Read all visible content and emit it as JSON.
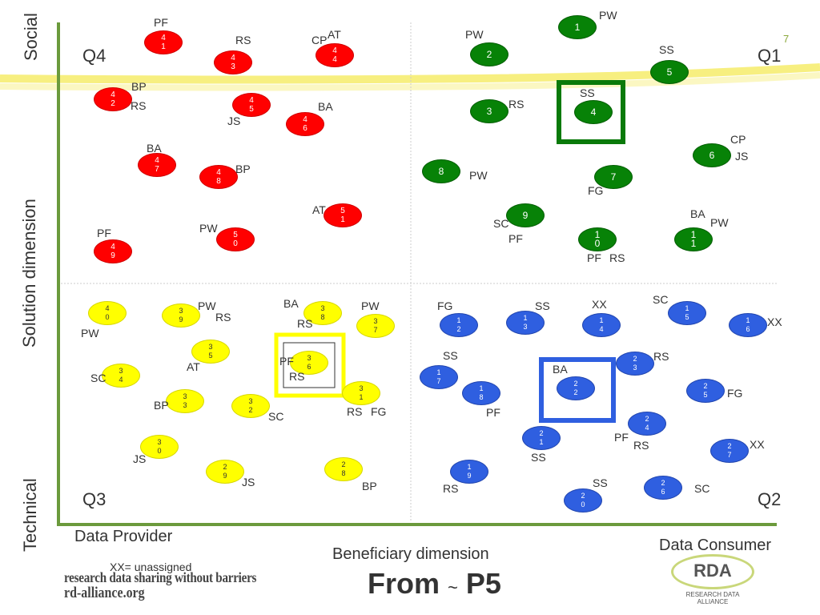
{
  "axes": {
    "social": "Social",
    "solution": "Solution dimension",
    "technical": "Technical",
    "provider": "Data Provider",
    "consumer": "Data Consumer",
    "beneficiary": "Beneficiary dimension"
  },
  "quadrants": {
    "q1": "Q1",
    "q2": "Q2",
    "q3": "Q3",
    "q4": "Q4"
  },
  "slide_number": "7",
  "legend_note": "XX= unassigned",
  "title": {
    "from": "From",
    "tilde": "~",
    "ref": "P5"
  },
  "logo": {
    "line1": "research data sharing without barriers",
    "line2": "rd-alliance.org"
  },
  "rda_logo": {
    "text": "RDA",
    "sub": "RESEARCH DATA ALLIANCE"
  },
  "nodes": [
    {
      "label": "4\n1",
      "color": "red"
    },
    {
      "label": "4\n3",
      "color": "red"
    },
    {
      "label": "4\n4",
      "color": "red"
    },
    {
      "label": "4\n2",
      "color": "red"
    },
    {
      "label": "4\n5",
      "color": "red"
    },
    {
      "label": "4\n6",
      "color": "red"
    },
    {
      "label": "4\n7",
      "color": "red"
    },
    {
      "label": "4\n8",
      "color": "red"
    },
    {
      "label": "5\n1",
      "color": "red"
    },
    {
      "label": "5\n0",
      "color": "red"
    },
    {
      "label": "4\n9",
      "color": "red"
    },
    {
      "label": "1",
      "color": "green"
    },
    {
      "label": "2",
      "color": "green"
    },
    {
      "label": "5",
      "color": "green"
    },
    {
      "label": "3",
      "color": "green"
    },
    {
      "label": "4",
      "color": "green"
    },
    {
      "label": "6",
      "color": "green"
    },
    {
      "label": "8",
      "color": "green"
    },
    {
      "label": "7",
      "color": "green"
    },
    {
      "label": "9",
      "color": "green"
    },
    {
      "label": "1\n0",
      "color": "green"
    },
    {
      "label": "1\n1",
      "color": "green"
    },
    {
      "label": "4\n0",
      "color": "yellow"
    },
    {
      "label": "3\n9",
      "color": "yellow"
    },
    {
      "label": "3\n8",
      "color": "yellow"
    },
    {
      "label": "3\n7",
      "color": "yellow"
    },
    {
      "label": "3\n5",
      "color": "yellow"
    },
    {
      "label": "3\n6",
      "color": "yellow"
    },
    {
      "label": "3\n4",
      "color": "yellow"
    },
    {
      "label": "3\n1",
      "color": "yellow"
    },
    {
      "label": "3\n3",
      "color": "yellow"
    },
    {
      "label": "3\n2",
      "color": "yellow"
    },
    {
      "label": "3\n0",
      "color": "yellow"
    },
    {
      "label": "2\n9",
      "color": "yellow"
    },
    {
      "label": "2\n8",
      "color": "yellow"
    },
    {
      "label": "1\n2",
      "color": "blue"
    },
    {
      "label": "1\n3",
      "color": "blue"
    },
    {
      "label": "1\n4",
      "color": "blue"
    },
    {
      "label": "1\n5",
      "color": "blue"
    },
    {
      "label": "1\n6",
      "color": "blue"
    },
    {
      "label": "1\n7",
      "color": "blue"
    },
    {
      "label": "2\n3",
      "color": "blue"
    },
    {
      "label": "1\n8",
      "color": "blue"
    },
    {
      "label": "2\n2",
      "color": "blue"
    },
    {
      "label": "2\n5",
      "color": "blue"
    },
    {
      "label": "2\n4",
      "color": "blue"
    },
    {
      "label": "2\n1",
      "color": "blue"
    },
    {
      "label": "2\n7",
      "color": "blue"
    },
    {
      "label": "1\n9",
      "color": "blue"
    },
    {
      "label": "2\n6",
      "color": "blue"
    },
    {
      "label": "2\n0",
      "color": "blue"
    }
  ],
  "tags": [
    "PF",
    "RS",
    "CP",
    "AT",
    "PW",
    "PW",
    "SS",
    "BP",
    "RS",
    "BA",
    "JS",
    "SS",
    "RS",
    "CP",
    "JS",
    "BA",
    "BP",
    "PW",
    "FG",
    "AT",
    "SC",
    "BA",
    "PW",
    "PF",
    "PW",
    "PF",
    "PF",
    "RS",
    "PW",
    "RS",
    "BA",
    "PW",
    "RS",
    "FG",
    "SS",
    "XX",
    "SC",
    "XX",
    "PW",
    "PF",
    "AT",
    "SC",
    "RS",
    "SS",
    "RS",
    "BA",
    "FG",
    "BP",
    "RS",
    "FG",
    "SC",
    "PF",
    "PF",
    "RS",
    "XX",
    "JS",
    "SS",
    "JS",
    "BP",
    "RS",
    "SS",
    "SC"
  ],
  "colors": {
    "red": "#ff0000",
    "green": "#078207",
    "yellow": "#ffff00",
    "blue": "#2f5fe0",
    "axis": "#6b9a3c",
    "box_green": "#0a7a0a",
    "box_yellow": "#ffff00",
    "box_blue": "#2f5fe0"
  }
}
